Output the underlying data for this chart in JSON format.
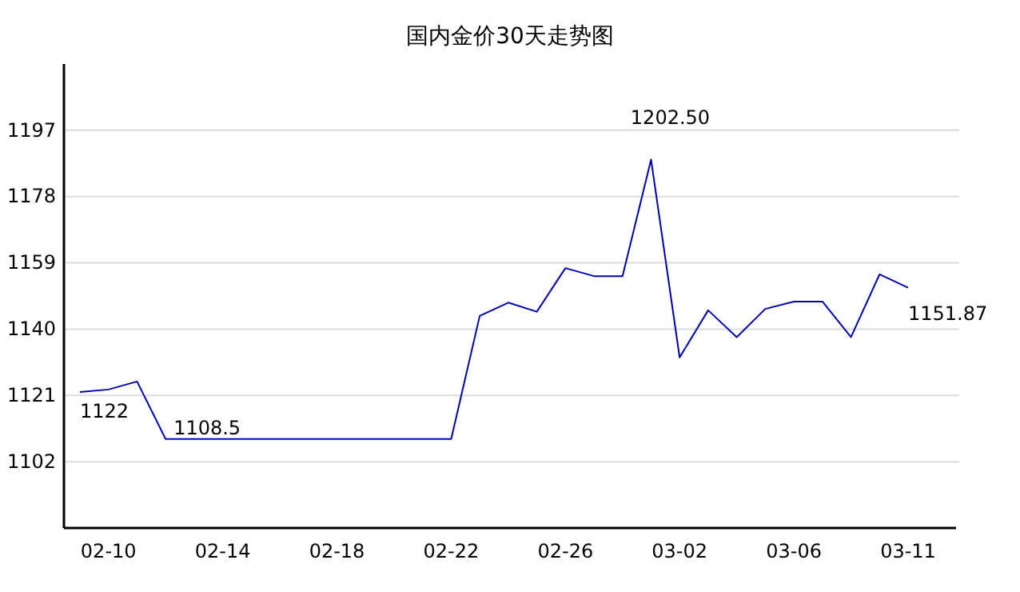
{
  "chart_data": {
    "type": "line",
    "title": "国内金价30天走势图",
    "categories": [
      null,
      "02-10",
      null,
      null,
      null,
      "02-14",
      null,
      null,
      null,
      "02-18",
      null,
      null,
      null,
      "02-22",
      null,
      null,
      null,
      "02-26",
      null,
      null,
      null,
      "03-02",
      null,
      null,
      null,
      "03-06",
      null,
      null,
      null,
      "03-11"
    ],
    "series": [
      {
        "color": "#0000b0",
        "values": [
          1122,
          1122.7,
          1125,
          1108.5,
          1108.5,
          1108.5,
          1108.5,
          1108.5,
          1108.5,
          1108.5,
          1108.5,
          1108.5,
          1108.5,
          1108.5,
          1143.8,
          1147.6,
          1145,
          1157.5,
          1155.2,
          1155.2,
          1188.6,
          1131.9,
          1145.4,
          1137.7,
          1145.8,
          1147.9,
          1147.9,
          1137.7,
          1155.7,
          1151.87
        ],
        "value_labels": [
          "1122",
          null,
          null,
          "1108.5",
          null,
          null,
          null,
          null,
          null,
          null,
          null,
          null,
          null,
          null,
          null,
          null,
          null,
          null,
          null,
          null,
          null,
          null,
          null,
          null,
          null,
          null,
          null,
          null,
          null,
          "1151.87"
        ]
      }
    ],
    "ylim": [
      1083,
      1216
    ],
    "yticks": [
      1102,
      1121,
      1140,
      1159,
      1178,
      1197
    ],
    "annotations": [
      "1202.50"
    ],
    "grid": "y",
    "marker": "none",
    "line_style": "solid"
  }
}
